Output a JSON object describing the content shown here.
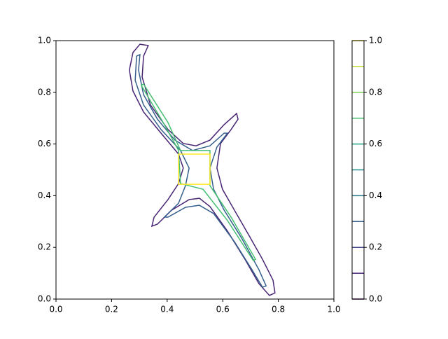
{
  "chart_data": {
    "type": "contour",
    "xlim": [
      0,
      1
    ],
    "ylim": [
      0,
      1
    ],
    "xticks": [
      {
        "value": 0,
        "label": "0.0"
      },
      0.2,
      0.4,
      0.6,
      0.8,
      {
        "value": 1,
        "label": "1.0"
      }
    ],
    "yticks": [
      {
        "value": 0,
        "label": "0.0"
      },
      0.2,
      0.4,
      0.6,
      0.8,
      {
        "value": 1,
        "label": "1.0"
      }
    ],
    "levels": [
      0,
      0.1,
      0.2,
      0.3,
      0.4,
      0.5,
      0.6,
      0.7,
      0.8,
      0.9,
      1
    ],
    "level_colors": [
      "#440154",
      "#482475",
      "#414487",
      "#355f8d",
      "#2a788e",
      "#21918c",
      "#22a884",
      "#44bf70",
      "#7ad151",
      "#bddf26",
      "#fde725"
    ],
    "colorbar_lim": [
      0,
      1
    ],
    "colorbar_ticks": [
      {
        "value": 0,
        "label": "0.0"
      },
      0.2,
      0.4,
      0.6,
      0.8,
      {
        "value": 1,
        "label": "1.0"
      }
    ],
    "contours": [
      {
        "level": 0.1,
        "color": "#482475",
        "x": [
          0.302,
          0.332,
          0.315,
          0.31,
          0.34,
          0.403,
          0.458,
          0.504,
          0.554,
          0.605,
          0.65,
          0.655,
          0.63,
          0.592,
          0.579,
          0.599,
          0.642,
          0.693,
          0.743,
          0.781,
          0.788,
          0.768,
          0.73,
          0.68,
          0.617,
          0.554,
          0.516,
          0.479,
          0.416,
          0.365,
          0.345,
          0.353,
          0.403,
          0.441,
          0.458,
          0.441,
          0.378,
          0.315,
          0.277,
          0.264,
          0.277
        ],
        "y": [
          0.986,
          0.981,
          0.94,
          0.859,
          0.751,
          0.656,
          0.602,
          0.593,
          0.615,
          0.675,
          0.718,
          0.696,
          0.656,
          0.602,
          0.507,
          0.425,
          0.344,
          0.249,
          0.154,
          0.073,
          0.024,
          0.014,
          0.06,
          0.154,
          0.263,
          0.358,
          0.39,
          0.385,
          0.344,
          0.29,
          0.282,
          0.317,
          0.385,
          0.447,
          0.507,
          0.561,
          0.642,
          0.724,
          0.805,
          0.886,
          0.954
        ]
      },
      {
        "level": 0.3,
        "color": "#355f8d",
        "x": [
          0.29,
          0.302,
          0.297,
          0.315,
          0.365,
          0.428,
          0.491,
          0.554,
          0.605,
          0.617,
          0.579,
          0.554,
          0.567,
          0.605,
          0.668,
          0.73,
          0.756,
          0.743,
          0.705,
          0.642,
          0.567,
          0.516,
          0.466,
          0.403,
          0.39,
          0.441,
          0.466,
          0.479,
          0.448,
          0.378,
          0.315,
          0.285
        ],
        "y": [
          0.94,
          0.946,
          0.886,
          0.791,
          0.696,
          0.615,
          0.575,
          0.593,
          0.642,
          0.642,
          0.588,
          0.507,
          0.425,
          0.344,
          0.236,
          0.114,
          0.051,
          0.046,
          0.114,
          0.222,
          0.331,
          0.363,
          0.355,
          0.317,
          0.317,
          0.371,
          0.439,
          0.507,
          0.575,
          0.656,
          0.751,
          0.846
        ]
      },
      {
        "level": 0.7,
        "color": "#44bf70",
        "x": [
          0.315,
          0.403,
          0.448,
          0.554,
          0.554,
          0.63,
          0.718,
          0.71,
          0.617,
          0.529,
          0.448,
          0.441,
          0.39,
          0.307
        ],
        "y": [
          0.832,
          0.683,
          0.575,
          0.575,
          0.439,
          0.317,
          0.154,
          0.149,
          0.304,
          0.425,
          0.447,
          0.575,
          0.675,
          0.827
        ]
      },
      {
        "level": 1,
        "color": "#fde725",
        "x": [
          0.441,
          0.554,
          0.554,
          0.441
        ],
        "y": [
          0.561,
          0.561,
          0.444,
          0.444
        ]
      }
    ]
  }
}
